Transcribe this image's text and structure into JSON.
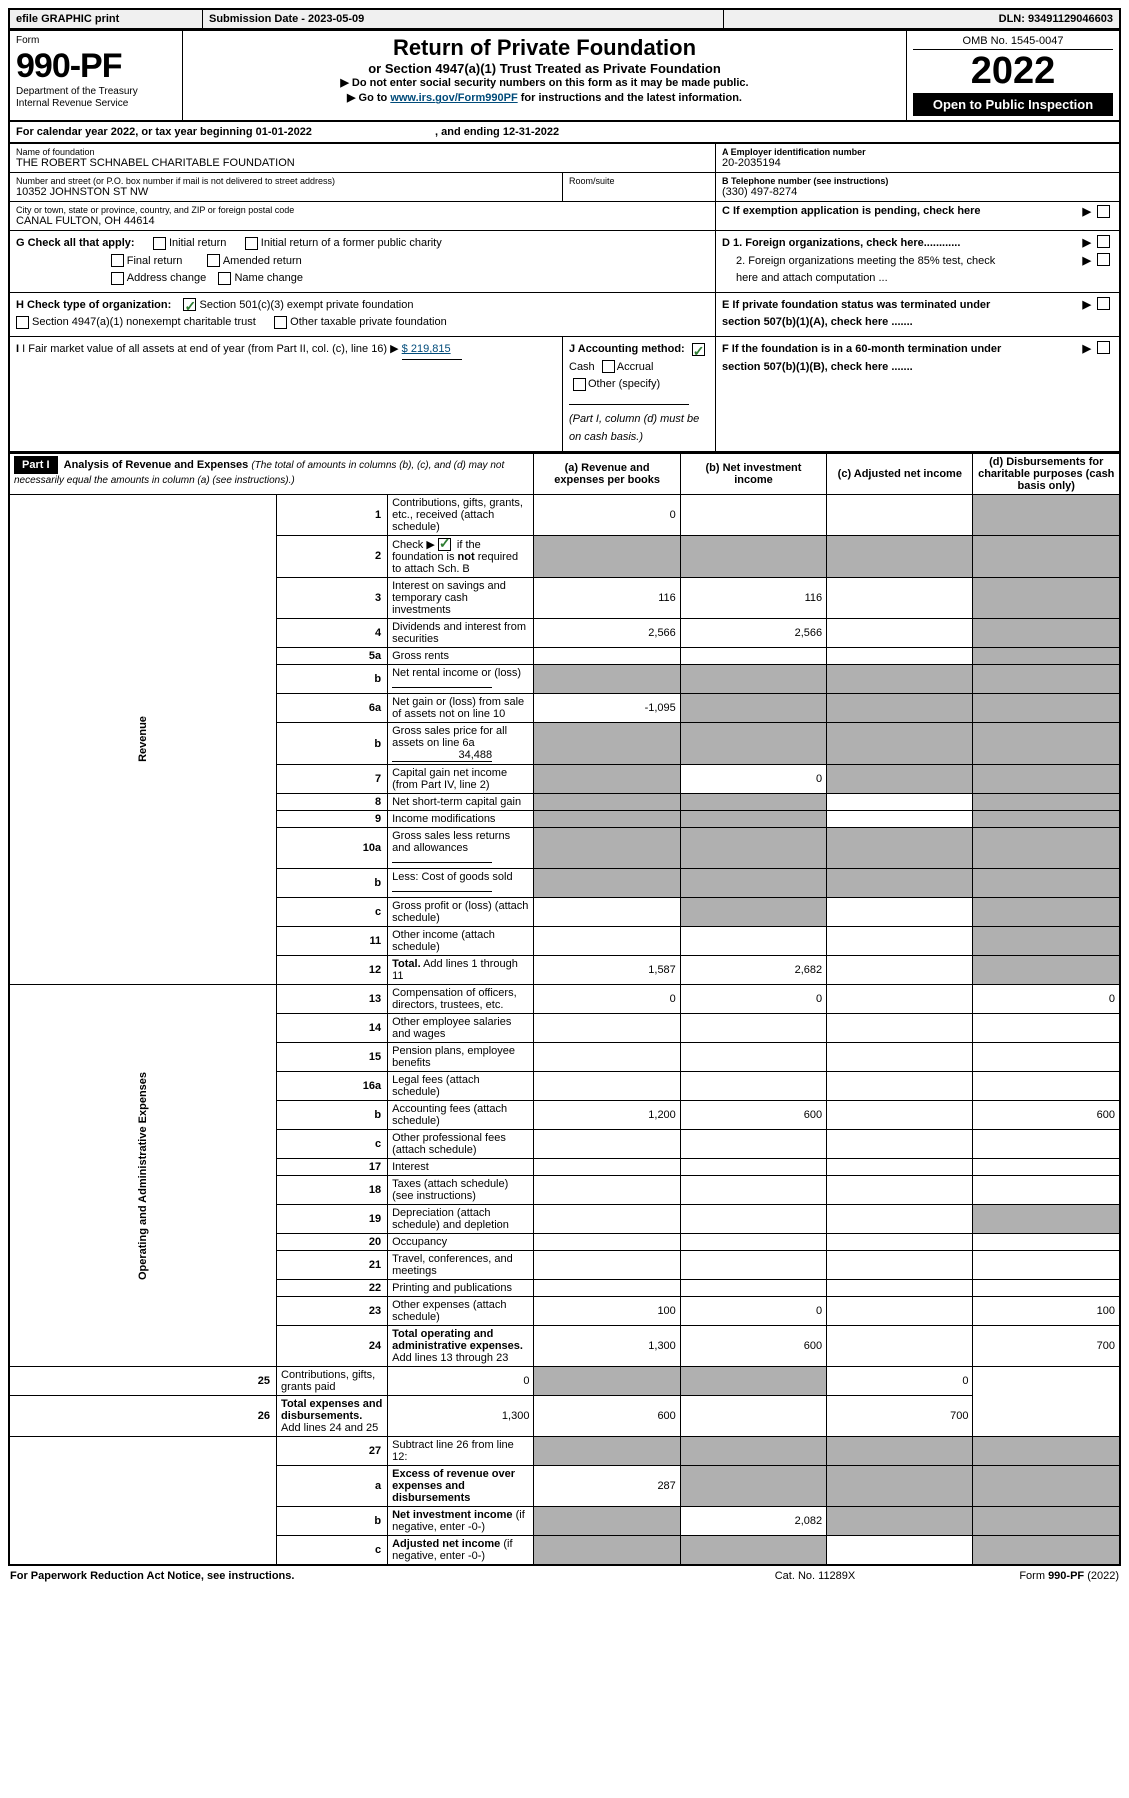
{
  "topbar": {
    "efile": "efile GRAPHIC print",
    "submission_label": "Submission Date - 2023-05-09",
    "dln": "DLN: 93491129046603"
  },
  "header": {
    "form_word": "Form",
    "form_no": "990-PF",
    "dept": "Department of the Treasury\nInternal Revenue Service",
    "title": "Return of Private Foundation",
    "subtitle": "or Section 4947(a)(1) Trust Treated as Private Foundation",
    "instr1": "▶ Do not enter social security numbers on this form as it may be made public.",
    "instr2_pre": "▶ Go to ",
    "instr2_link": "www.irs.gov/Form990PF",
    "instr2_post": " for instructions and the latest information.",
    "omb": "OMB No. 1545-0047",
    "year": "2022",
    "open_public": "Open to Public Inspection"
  },
  "calendar": {
    "text_pre": "For calendar year 2022, or tax year beginning ",
    "begin": "01-01-2022",
    "mid": " , and ending ",
    "end": "12-31-2022"
  },
  "foundation": {
    "name_label": "Name of foundation",
    "name": "THE ROBERT SCHNABEL CHARITABLE FOUNDATION",
    "addr_label": "Number and street (or P.O. box number if mail is not delivered to street address)",
    "addr": "10352 JOHNSTON ST NW",
    "room_label": "Room/suite",
    "room": "",
    "city_label": "City or town, state or province, country, and ZIP or foreign postal code",
    "city": "CANAL FULTON, OH  44614",
    "ein_label": "A Employer identification number",
    "ein": "20-2035194",
    "phone_label": "B Telephone number (see instructions)",
    "phone": "(330) 497-8274",
    "c_label": "C If exemption application is pending, check here",
    "d1": "D 1. Foreign organizations, check here............",
    "d2": "2. Foreign organizations meeting the 85% test, check here and attach computation ...",
    "e_label": "E  If private foundation status was terminated under section 507(b)(1)(A), check here .......",
    "f_label": "F  If the foundation is in a 60-month termination under section 507(b)(1)(B), check here .......",
    "g_label": "G Check all that apply:",
    "g_opts": {
      "initial": "Initial return",
      "initial_former": "Initial return of a former public charity",
      "final": "Final return",
      "amended": "Amended return",
      "address": "Address change",
      "name_change": "Name change"
    },
    "h_label": "H Check type of organization:",
    "h_opts": {
      "s501c3": "Section 501(c)(3) exempt private foundation",
      "s4947": "Section 4947(a)(1) nonexempt charitable trust",
      "other_tax": "Other taxable private foundation"
    },
    "i_label": "I Fair market value of all assets at end of year (from Part II, col. (c), line 16) ▶",
    "i_val": "$  219,815",
    "j_label": "J Accounting method:",
    "j_cash": "Cash",
    "j_accrual": "Accrual",
    "j_other": "Other (specify)",
    "j_note": "(Part I, column (d) must be on cash basis.)"
  },
  "part1": {
    "label": "Part I",
    "title": "Analysis of Revenue and Expenses",
    "title_note": "(The total of amounts in columns (b), (c), and (d) may not necessarily equal the amounts in column (a) (see instructions).)",
    "col_a": "(a)  Revenue and expenses per books",
    "col_b": "(b)  Net investment income",
    "col_c": "(c)  Adjusted net income",
    "col_d": "(d)  Disbursements for charitable purposes (cash basis only)",
    "revenue_label": "Revenue",
    "expenses_label": "Operating and Administrative Expenses"
  },
  "rows": {
    "r1": {
      "n": "1",
      "label": "Contributions, gifts, grants, etc., received (attach schedule)",
      "a": "0",
      "b": "",
      "c": "",
      "d": "",
      "shade": [
        "d"
      ]
    },
    "r2": {
      "n": "2",
      "label_pre": "Check ▶ ",
      "label_post": " if the foundation is <b>not</b> required to attach Sch. B",
      "a": "",
      "b": "",
      "c": "",
      "d": "",
      "shade": [
        "a",
        "b",
        "c",
        "d"
      ],
      "checked": true
    },
    "r3": {
      "n": "3",
      "label": "Interest on savings and temporary cash investments",
      "a": "116",
      "b": "116",
      "c": "",
      "d": "",
      "shade": [
        "d"
      ]
    },
    "r4": {
      "n": "4",
      "label": "Dividends and interest from securities",
      "a": "2,566",
      "b": "2,566",
      "c": "",
      "d": "",
      "shade": [
        "d"
      ]
    },
    "r5a": {
      "n": "5a",
      "label": "Gross rents",
      "a": "",
      "b": "",
      "c": "",
      "d": "",
      "shade": [
        "d"
      ]
    },
    "r5b": {
      "n": "b",
      "label": "Net rental income or (loss)",
      "a": "",
      "b": "",
      "c": "",
      "d": "",
      "inline": true,
      "shade": [
        "a",
        "b",
        "c",
        "d"
      ]
    },
    "r6a": {
      "n": "6a",
      "label": "Net gain or (loss) from sale of assets not on line 10",
      "a": "-1,095",
      "b": "",
      "c": "",
      "d": "",
      "shade": [
        "b",
        "c",
        "d"
      ]
    },
    "r6b": {
      "n": "b",
      "label": "Gross sales price for all assets on line 6a",
      "inline_val": "34,488",
      "shade": [
        "a",
        "b",
        "c",
        "d"
      ]
    },
    "r7": {
      "n": "7",
      "label": "Capital gain net income (from Part IV, line 2)",
      "a": "",
      "b": "0",
      "c": "",
      "d": "",
      "shade": [
        "a",
        "c",
        "d"
      ]
    },
    "r8": {
      "n": "8",
      "label": "Net short-term capital gain",
      "a": "",
      "b": "",
      "c": "",
      "d": "",
      "shade": [
        "a",
        "b",
        "d"
      ]
    },
    "r9": {
      "n": "9",
      "label": "Income modifications",
      "a": "",
      "b": "",
      "c": "",
      "d": "",
      "shade": [
        "a",
        "b",
        "d"
      ]
    },
    "r10a": {
      "n": "10a",
      "label": "Gross sales less returns and allowances",
      "inline": true,
      "shade": [
        "a",
        "b",
        "c",
        "d"
      ]
    },
    "r10b": {
      "n": "b",
      "label": "Less: Cost of goods sold",
      "inline": true,
      "shade": [
        "a",
        "b",
        "c",
        "d"
      ]
    },
    "r10c": {
      "n": "c",
      "label": "Gross profit or (loss) (attach schedule)",
      "a": "",
      "b": "",
      "c": "",
      "d": "",
      "shade": [
        "b",
        "d"
      ]
    },
    "r11": {
      "n": "11",
      "label": "Other income (attach schedule)",
      "a": "",
      "b": "",
      "c": "",
      "d": "",
      "shade": [
        "d"
      ]
    },
    "r12": {
      "n": "12",
      "label": "<b>Total.</b> Add lines 1 through 11",
      "a": "1,587",
      "b": "2,682",
      "c": "",
      "d": "",
      "shade": [
        "d"
      ]
    },
    "r13": {
      "n": "13",
      "label": "Compensation of officers, directors, trustees, etc.",
      "a": "0",
      "b": "0",
      "c": "",
      "d": "0"
    },
    "r14": {
      "n": "14",
      "label": "Other employee salaries and wages",
      "a": "",
      "b": "",
      "c": "",
      "d": ""
    },
    "r15": {
      "n": "15",
      "label": "Pension plans, employee benefits",
      "a": "",
      "b": "",
      "c": "",
      "d": ""
    },
    "r16a": {
      "n": "16a",
      "label": "Legal fees (attach schedule)",
      "a": "",
      "b": "",
      "c": "",
      "d": ""
    },
    "r16b": {
      "n": "b",
      "label": "Accounting fees (attach schedule)",
      "a": "1,200",
      "b": "600",
      "c": "",
      "d": "600"
    },
    "r16c": {
      "n": "c",
      "label": "Other professional fees (attach schedule)",
      "a": "",
      "b": "",
      "c": "",
      "d": ""
    },
    "r17": {
      "n": "17",
      "label": "Interest",
      "a": "",
      "b": "",
      "c": "",
      "d": ""
    },
    "r18": {
      "n": "18",
      "label": "Taxes (attach schedule) (see instructions)",
      "a": "",
      "b": "",
      "c": "",
      "d": ""
    },
    "r19": {
      "n": "19",
      "label": "Depreciation (attach schedule) and depletion",
      "a": "",
      "b": "",
      "c": "",
      "d": "",
      "shade": [
        "d"
      ]
    },
    "r20": {
      "n": "20",
      "label": "Occupancy",
      "a": "",
      "b": "",
      "c": "",
      "d": ""
    },
    "r21": {
      "n": "21",
      "label": "Travel, conferences, and meetings",
      "a": "",
      "b": "",
      "c": "",
      "d": ""
    },
    "r22": {
      "n": "22",
      "label": "Printing and publications",
      "a": "",
      "b": "",
      "c": "",
      "d": ""
    },
    "r23": {
      "n": "23",
      "label": "Other expenses (attach schedule)",
      "a": "100",
      "b": "0",
      "c": "",
      "d": "100"
    },
    "r24": {
      "n": "24",
      "label": "<b>Total operating and administrative expenses.</b> Add lines 13 through 23",
      "a": "1,300",
      "b": "600",
      "c": "",
      "d": "700"
    },
    "r25": {
      "n": "25",
      "label": "Contributions, gifts, grants paid",
      "a": "0",
      "b": "",
      "c": "",
      "d": "0",
      "shade": [
        "b",
        "c"
      ]
    },
    "r26": {
      "n": "26",
      "label": "<b>Total expenses and disbursements.</b> Add lines 24 and 25",
      "a": "1,300",
      "b": "600",
      "c": "",
      "d": "700"
    },
    "r27": {
      "n": "27",
      "label": "Subtract line 26 from line 12:",
      "shade": [
        "a",
        "b",
        "c",
        "d"
      ]
    },
    "r27a": {
      "n": "a",
      "label": "<b>Excess of revenue over expenses and disbursements</b>",
      "a": "287",
      "b": "",
      "c": "",
      "d": "",
      "shade": [
        "b",
        "c",
        "d"
      ]
    },
    "r27b": {
      "n": "b",
      "label": "<b>Net investment income</b> (if negative, enter -0-)",
      "a": "",
      "b": "2,082",
      "c": "",
      "d": "",
      "shade": [
        "a",
        "c",
        "d"
      ]
    },
    "r27c": {
      "n": "c",
      "label": "<b>Adjusted net income</b> (if negative, enter -0-)",
      "a": "",
      "b": "",
      "c": "",
      "d": "",
      "shade": [
        "a",
        "b",
        "d"
      ]
    }
  },
  "footer": {
    "left": "For Paperwork Reduction Act Notice, see instructions.",
    "mid": "Cat. No. 11289X",
    "right": "Form 990-PF (2022)"
  },
  "colors": {
    "shade": "#b0b0b0",
    "link": "#004b7a",
    "check": "#2e7d32"
  }
}
